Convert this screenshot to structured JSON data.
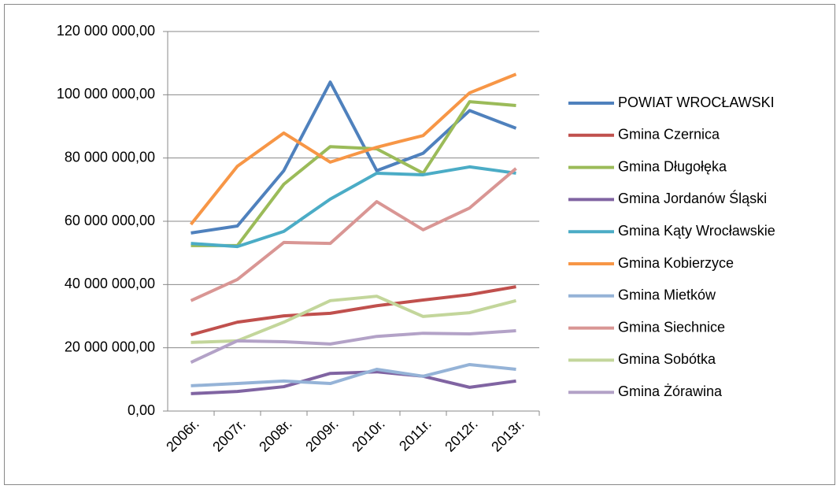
{
  "chart_data": {
    "type": "line",
    "categories": [
      "2006r.",
      "2007r.",
      "2008r.",
      "2009r.",
      "2010r.",
      "2011r.",
      "2012r.",
      "2013r."
    ],
    "ylim": [
      0,
      120000000
    ],
    "yticks": [
      {
        "value": 0,
        "label": "0,00"
      },
      {
        "value": 20000000,
        "label": "20 000 000,00"
      },
      {
        "value": 40000000,
        "label": "40 000 000,00"
      },
      {
        "value": 60000000,
        "label": "60 000 000,00"
      },
      {
        "value": 80000000,
        "label": "80 000 000,00"
      },
      {
        "value": 100000000,
        "label": "100 000 000,00"
      },
      {
        "value": 120000000,
        "label": "120 000 000,00"
      }
    ],
    "grid": true,
    "legend": "right",
    "series": [
      {
        "name": "POWIAT WROCŁAWSKI",
        "color": "#4F81BD",
        "values": [
          56300000,
          58500000,
          76000000,
          104000000,
          76000000,
          81500000,
          95000000,
          89400000
        ]
      },
      {
        "name": "Gmina Czernica",
        "color": "#C0504D",
        "values": [
          24100000,
          28100000,
          30100000,
          30900000,
          33300000,
          35100000,
          36800000,
          39300000
        ]
      },
      {
        "name": "Gmina Długołęka",
        "color": "#9BBB59",
        "values": [
          52300000,
          52300000,
          71700000,
          83600000,
          82900000,
          75200000,
          97800000,
          96600000
        ]
      },
      {
        "name": "Gmina Jordanów Śląski",
        "color": "#8064A2",
        "values": [
          5500000,
          6200000,
          7700000,
          11900000,
          12400000,
          11000000,
          7500000,
          9500000
        ]
      },
      {
        "name": "Gmina Kąty Wrocławskie",
        "color": "#4BACC6",
        "values": [
          53000000,
          52000000,
          56800000,
          67000000,
          75200000,
          74700000,
          77200000,
          75200000
        ]
      },
      {
        "name": "Gmina Kobierzyce",
        "color": "#F79646",
        "values": [
          59000000,
          77400000,
          87900000,
          78700000,
          83400000,
          87100000,
          100600000,
          106500000
        ]
      },
      {
        "name": "Gmina Mietków",
        "color": "#95B3D7",
        "values": [
          8000000,
          8700000,
          9500000,
          8700000,
          13200000,
          11000000,
          14700000,
          13200000
        ]
      },
      {
        "name": "Gmina Siechnice",
        "color": "#D99694",
        "values": [
          34900000,
          41600000,
          53300000,
          53000000,
          66200000,
          57300000,
          64200000,
          76700000
        ]
      },
      {
        "name": "Gmina Sobótka",
        "color": "#C3D69B",
        "values": [
          21700000,
          22200000,
          28100000,
          34900000,
          36300000,
          29900000,
          31100000,
          34900000
        ]
      },
      {
        "name": "Gmina Żórawina",
        "color": "#B3A2C7",
        "values": [
          15400000,
          22200000,
          21900000,
          21200000,
          23600000,
          24600000,
          24400000,
          25400000
        ]
      }
    ]
  }
}
